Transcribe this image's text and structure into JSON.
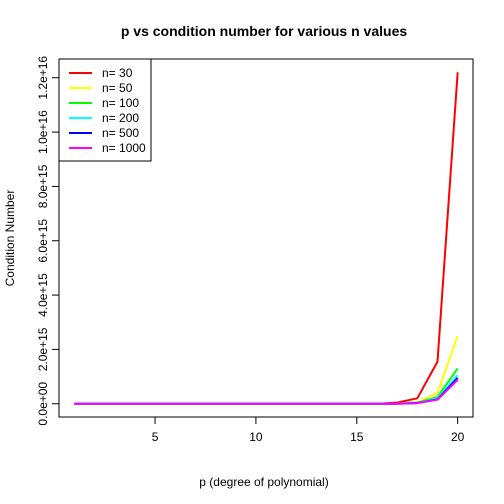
{
  "chart_data": {
    "type": "line",
    "title": "p vs condition number for various n values",
    "xlabel": "p (degree of polynomial)",
    "ylabel": "Condition Number",
    "xlim": [
      0.24,
      20.76
    ],
    "ylim": [
      -488000000000000.0,
      1.269e+16
    ],
    "xticks": [
      5,
      10,
      15,
      20
    ],
    "xtick_labels": [
      "5",
      "10",
      "15",
      "20"
    ],
    "yticks": [
      0,
      2000000000000000.0,
      4000000000000000.0,
      6000000000000000.0,
      8000000000000000.0,
      1e+16,
      1.2e+16
    ],
    "ytick_labels": [
      "0.0e+00",
      "2.0e+15",
      "4.0e+15",
      "6.0e+15",
      "8.0e+15",
      "1.0e+16",
      "1.2e+16"
    ],
    "grid": false,
    "legend_position": "top-left",
    "x": [
      1,
      2,
      3,
      4,
      5,
      6,
      7,
      8,
      9,
      10,
      11,
      12,
      13,
      14,
      15,
      16,
      17,
      18,
      19,
      20
    ],
    "series": [
      {
        "name": "n= 30",
        "color": "#ff0000",
        "values": [
          0,
          0,
          0,
          0,
          0,
          0,
          0,
          0,
          0,
          0,
          0,
          0,
          0,
          0,
          0,
          0,
          40000000000000.0,
          200000000000000.0,
          1550000000000000.0,
          1.22e+16
        ]
      },
      {
        "name": "n= 50",
        "color": "#ffff00",
        "values": [
          0,
          0,
          0,
          0,
          0,
          0,
          0,
          0,
          0,
          0,
          0,
          0,
          0,
          0,
          0,
          0,
          10000000000000.0,
          50000000000000.0,
          400000000000000.0,
          2500000000000000.0
        ]
      },
      {
        "name": "n= 100",
        "color": "#00ff00",
        "values": [
          0,
          0,
          0,
          0,
          0,
          0,
          0,
          0,
          0,
          0,
          0,
          0,
          0,
          0,
          0,
          0,
          5000000000000.0,
          40000000000000.0,
          250000000000000.0,
          1300000000000000.0
        ]
      },
      {
        "name": "n= 200",
        "color": "#00ffff",
        "values": [
          0,
          0,
          0,
          0,
          0,
          0,
          0,
          0,
          0,
          0,
          0,
          0,
          0,
          0,
          0,
          0,
          3000000000000.0,
          30000000000000.0,
          200000000000000.0,
          1050000000000000.0
        ]
      },
      {
        "name": "n= 500",
        "color": "#0000ff",
        "values": [
          0,
          0,
          0,
          0,
          0,
          0,
          0,
          0,
          0,
          0,
          0,
          0,
          0,
          0,
          0,
          0,
          2000000000000.0,
          25000000000000.0,
          160000000000000.0,
          950000000000000.0
        ]
      },
      {
        "name": "n= 1000",
        "color": "#ff00ff",
        "values": [
          0,
          0,
          0,
          0,
          0,
          0,
          0,
          0,
          0,
          0,
          0,
          0,
          0,
          0,
          0,
          0,
          2000000000000.0,
          20000000000000.0,
          150000000000000.0,
          880000000000000.0
        ]
      }
    ]
  }
}
